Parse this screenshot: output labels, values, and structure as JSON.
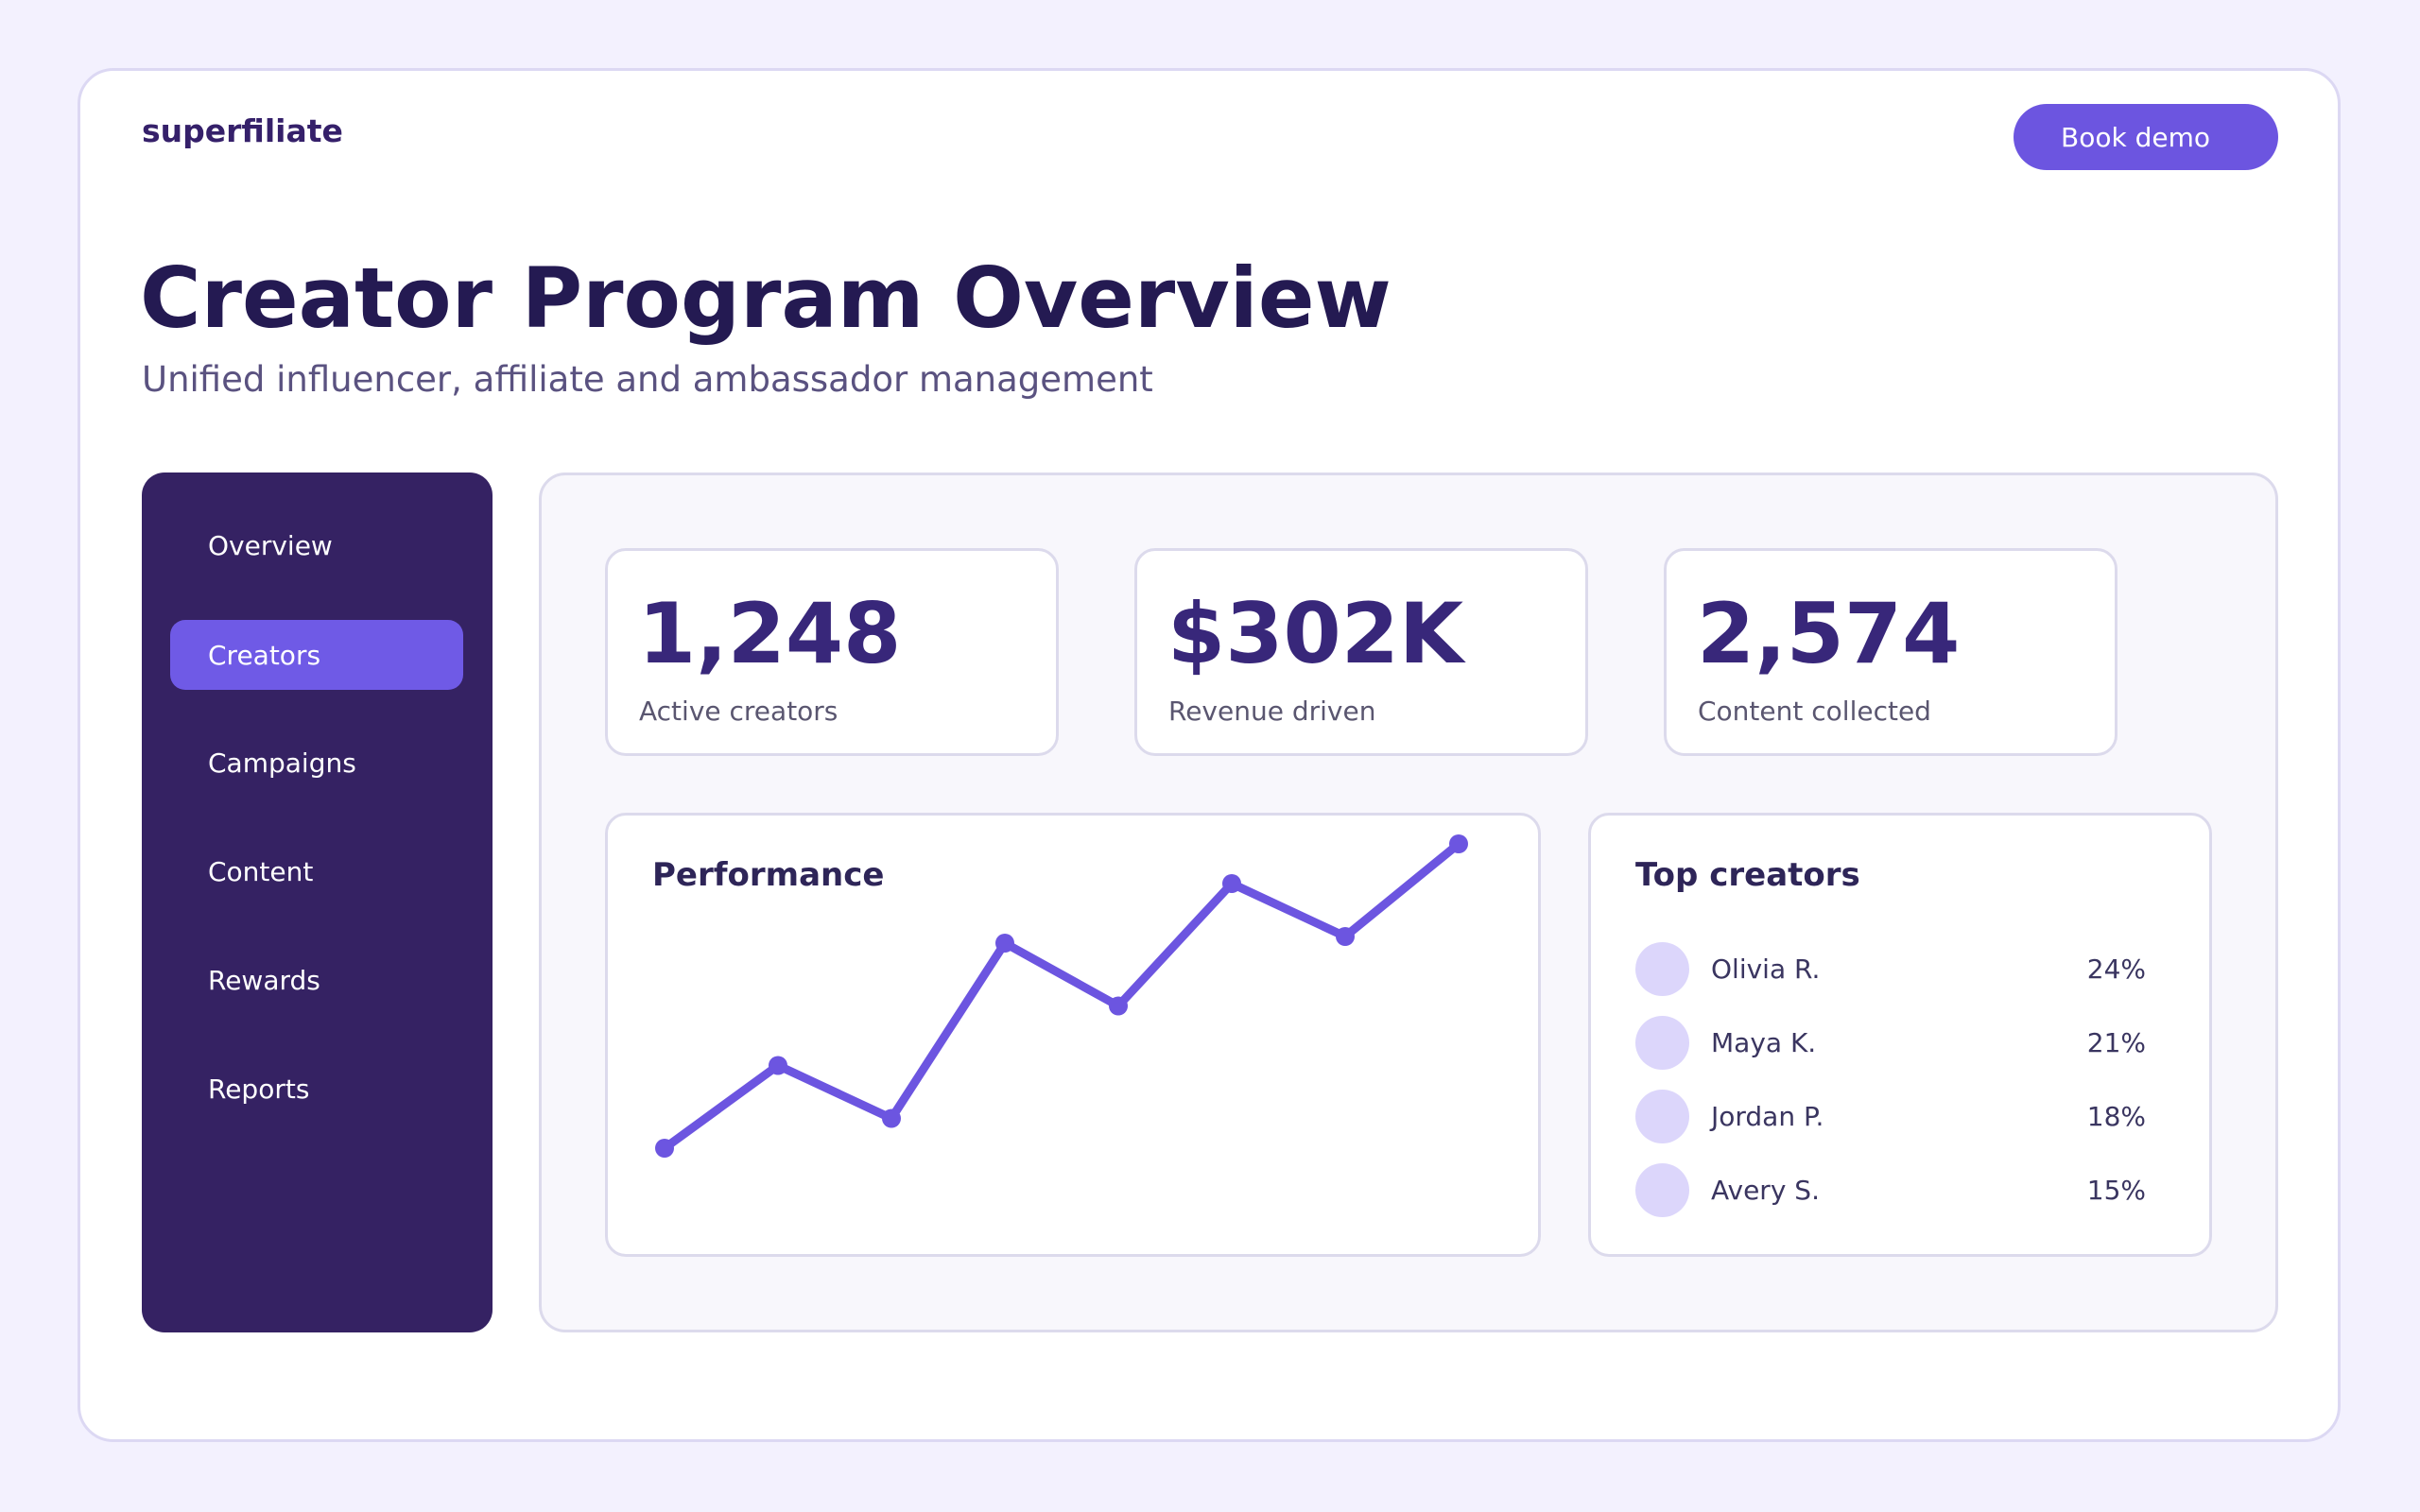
{
  "header": {
    "brand": "superfiliate",
    "cta_label": "Book demo"
  },
  "hero": {
    "title": "Creator Program Overview",
    "subtitle": "Unified influencer, affiliate and ambassador management"
  },
  "sidebar": {
    "items": [
      {
        "label": "Overview",
        "active": false
      },
      {
        "label": "Creators",
        "active": true
      },
      {
        "label": "Campaigns",
        "active": false
      },
      {
        "label": "Content",
        "active": false
      },
      {
        "label": "Rewards",
        "active": false
      },
      {
        "label": "Reports",
        "active": false
      }
    ]
  },
  "stats": [
    {
      "value": "1,248",
      "label": "Active creators"
    },
    {
      "value": "$302K",
      "label": "Revenue driven"
    },
    {
      "value": "2,574",
      "label": "Content collected"
    }
  ],
  "performance": {
    "title": "Performance"
  },
  "chart_data": {
    "type": "line",
    "title": "Performance",
    "xlabel": "",
    "ylabel": "",
    "grid": false,
    "values": [
      0.08,
      0.33,
      0.17,
      0.7,
      0.51,
      0.88,
      0.72,
      1.0
    ]
  },
  "top_creators": {
    "title": "Top creators",
    "rows": [
      {
        "name": "Olivia R.",
        "pct": "24%"
      },
      {
        "name": "Maya K.",
        "pct": "21%"
      },
      {
        "name": "Jordan P.",
        "pct": "18%"
      },
      {
        "name": "Avery S.",
        "pct": "15%"
      }
    ]
  },
  "colors": {
    "accent": "#6c55e0",
    "sidebar_bg": "#352263",
    "title": "#241a52",
    "avatar": "#dcd6fb"
  }
}
